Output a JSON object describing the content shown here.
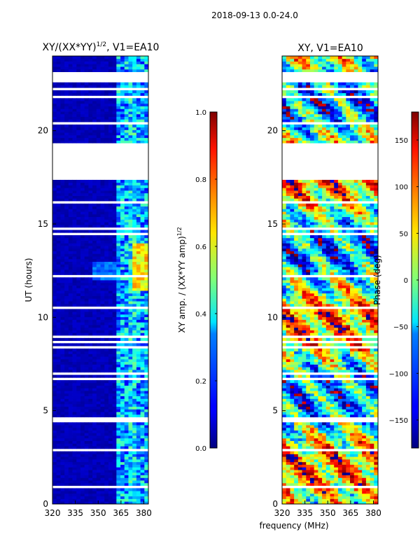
{
  "figure_title": "2018-09-13 0.0-24.0",
  "xlabel": "frequency (MHz)",
  "chart_data": [
    {
      "type": "heatmap",
      "title_main": "XY/(XX*YY)",
      "title_sup": "1/2",
      "title_tail": ", V1=EA10",
      "xlabel": "",
      "ylabel": "UT (hours)",
      "xlim": [
        320,
        383
      ],
      "ylim": [
        0,
        24
      ],
      "xticks": [
        320,
        335,
        350,
        365,
        380
      ],
      "yticks": [
        0,
        5,
        10,
        15,
        20
      ],
      "gap_hours": [
        17.5,
        19.4
      ],
      "colorbar": {
        "label": "XY amp. / (XX*YY amp)",
        "label_sup": "1/2",
        "range": [
          0.0,
          1.0
        ],
        "ticks": [
          "0.0",
          "0.2",
          "0.4",
          "0.6",
          "0.8",
          "1.0"
        ],
        "tick_values": [
          0.0,
          0.2,
          0.4,
          0.6,
          0.8,
          1.0
        ],
        "colormap": "jet"
      }
    },
    {
      "type": "heatmap",
      "title_main": "XY, V1=EA10",
      "xlabel": "frequency (MHz)",
      "ylabel": "",
      "xlim": [
        320,
        383
      ],
      "ylim": [
        0,
        24
      ],
      "xticks": [
        320,
        335,
        350,
        365,
        380
      ],
      "yticks": [
        0,
        5,
        10,
        15,
        20
      ],
      "gap_hours": [
        17.5,
        19.4
      ],
      "colorbar": {
        "label": "Phase (deg)",
        "range": [
          -180,
          180
        ],
        "ticks": [
          "−150",
          "−100",
          "−50",
          "0",
          "50",
          "100",
          "150"
        ],
        "tick_values": [
          -150,
          -100,
          -50,
          0,
          50,
          100,
          150
        ],
        "colormap": "jet"
      }
    }
  ]
}
